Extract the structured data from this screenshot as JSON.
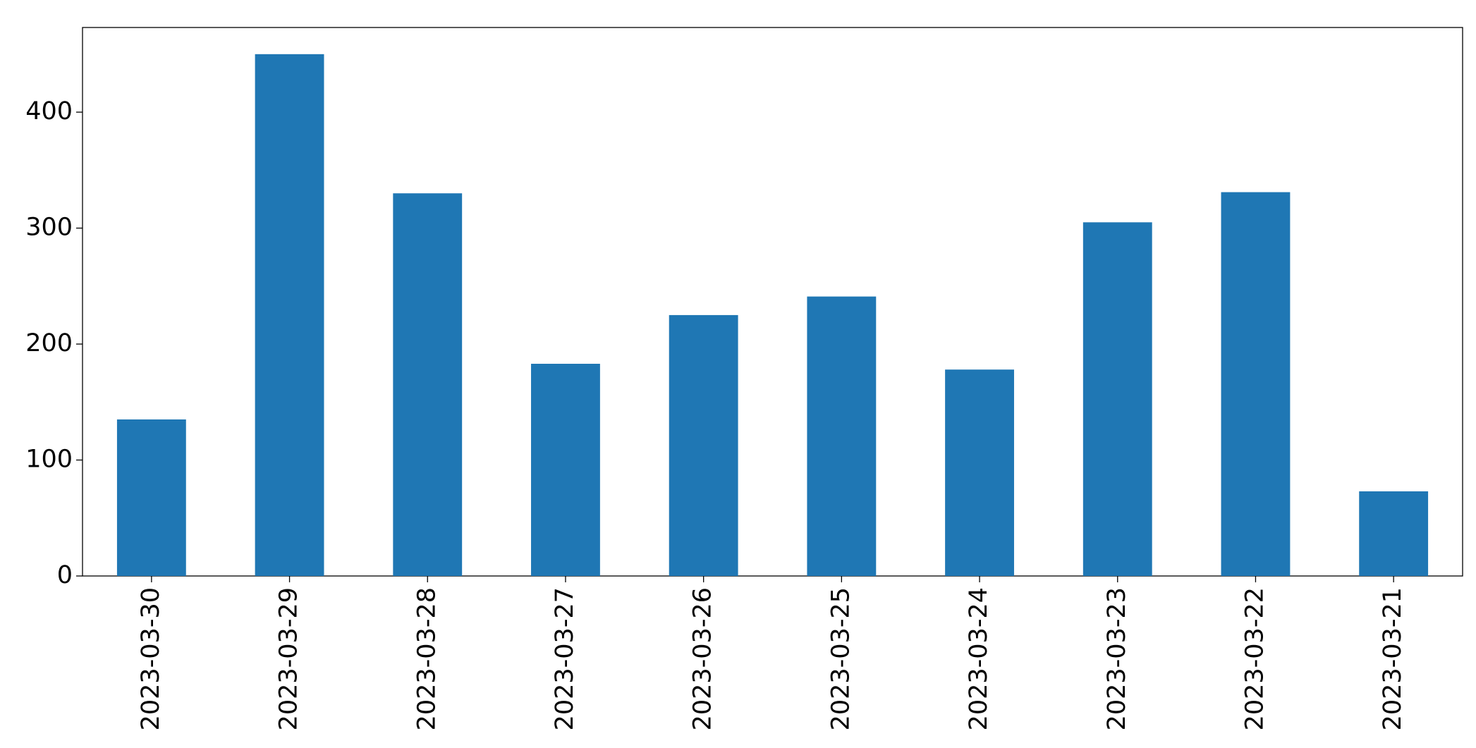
{
  "chart_data": {
    "type": "bar",
    "categories": [
      "2023-03-30",
      "2023-03-29",
      "2023-03-28",
      "2023-03-27",
      "2023-03-26",
      "2023-03-25",
      "2023-03-24",
      "2023-03-23",
      "2023-03-22",
      "2023-03-21"
    ],
    "values": [
      135,
      450,
      330,
      183,
      225,
      241,
      178,
      305,
      331,
      73
    ],
    "color": "#1f77b4",
    "ylim": [
      0,
      473
    ],
    "yticks": [
      0,
      100,
      200,
      300,
      400
    ],
    "grid": false
  }
}
